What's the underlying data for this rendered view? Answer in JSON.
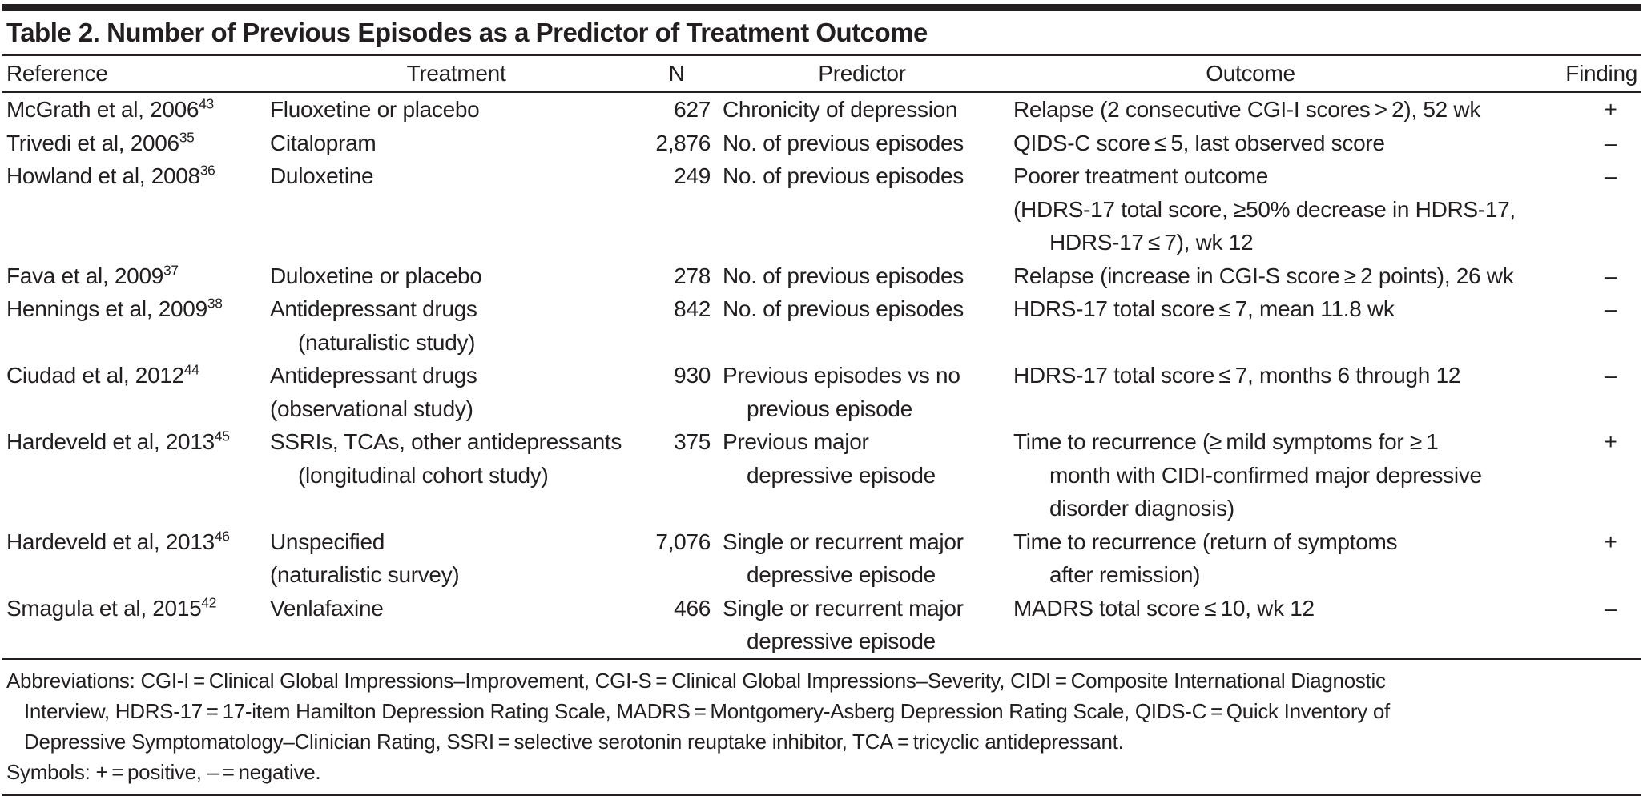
{
  "title": "Table 2. Number of Previous Episodes as a Predictor of Treatment Outcome",
  "colors": {
    "text": "#231f20",
    "rule": "#231f20",
    "background": "#ffffff"
  },
  "table": {
    "columns": [
      "Reference",
      "Treatment",
      "N",
      "Predictor",
      "Outcome",
      "Finding"
    ],
    "rows": [
      {
        "reference": {
          "text": "McGrath et al, 2006",
          "sup": "43"
        },
        "treatment": [
          {
            "text": "Fluoxetine or placebo",
            "indent": false
          }
        ],
        "n": "627",
        "predictor": [
          {
            "text": "Chronicity of depression",
            "indent": false
          }
        ],
        "outcome": [
          {
            "text": "Relapse (2 consecutive CGI-I scores > 2), 52 wk",
            "indent": false
          }
        ],
        "finding": "+"
      },
      {
        "reference": {
          "text": "Trivedi et al, 2006",
          "sup": "35"
        },
        "treatment": [
          {
            "text": "Citalopram",
            "indent": false
          }
        ],
        "n": "2,876",
        "predictor": [
          {
            "text": "No. of previous episodes",
            "indent": false
          }
        ],
        "outcome": [
          {
            "text": "QIDS-C score ≤ 5, last observed score",
            "indent": false
          }
        ],
        "finding": "–"
      },
      {
        "reference": {
          "text": "Howland et al, 2008",
          "sup": "36"
        },
        "treatment": [
          {
            "text": "Duloxetine",
            "indent": false
          }
        ],
        "n": "249",
        "predictor": [
          {
            "text": "No. of previous episodes",
            "indent": false
          }
        ],
        "outcome": [
          {
            "text": "Poorer treatment outcome",
            "indent": false
          },
          {
            "text": "(HDRS-17 total score, ≥50% decrease in HDRS-17,",
            "indent": false
          },
          {
            "text": "HDRS-17 ≤ 7), wk 12",
            "indent": true
          }
        ],
        "finding": "–"
      },
      {
        "reference": {
          "text": "Fava et al, 2009",
          "sup": "37"
        },
        "treatment": [
          {
            "text": "Duloxetine or placebo",
            "indent": false
          }
        ],
        "n": "278",
        "predictor": [
          {
            "text": "No. of previous episodes",
            "indent": false
          }
        ],
        "outcome": [
          {
            "text": "Relapse (increase in CGI-S score ≥ 2 points), 26 wk",
            "indent": false
          }
        ],
        "finding": "–"
      },
      {
        "reference": {
          "text": "Hennings et al, 2009",
          "sup": "38"
        },
        "treatment": [
          {
            "text": "Antidepressant drugs",
            "indent": false
          },
          {
            "text": "(naturalistic study)",
            "indent": true
          }
        ],
        "n": "842",
        "predictor": [
          {
            "text": "No. of previous episodes",
            "indent": false
          }
        ],
        "outcome": [
          {
            "text": "HDRS-17 total score ≤ 7, mean 11.8 wk",
            "indent": false
          }
        ],
        "finding": "–"
      },
      {
        "reference": {
          "text": "Ciudad et al, 2012",
          "sup": "44"
        },
        "treatment": [
          {
            "text": "Antidepressant drugs",
            "indent": false
          },
          {
            "text": "(observational study)",
            "indent": false
          }
        ],
        "n": "930",
        "predictor": [
          {
            "text": "Previous episodes vs no",
            "indent": false
          },
          {
            "text": "previous episode",
            "indent": true
          }
        ],
        "outcome": [
          {
            "text": "HDRS-17 total score ≤ 7, months 6 through 12",
            "indent": false
          }
        ],
        "finding": "–"
      },
      {
        "reference": {
          "text": "Hardeveld et al, 2013",
          "sup": "45"
        },
        "treatment": [
          {
            "text": "SSRIs, TCAs, other antidepressants",
            "indent": false
          },
          {
            "text": "(longitudinal cohort study)",
            "indent": true
          }
        ],
        "n": "375",
        "predictor": [
          {
            "text": "Previous major",
            "indent": false
          },
          {
            "text": "depressive episode",
            "indent": true
          }
        ],
        "outcome": [
          {
            "text": "Time to recurrence (≥ mild symptoms for ≥ 1",
            "indent": false
          },
          {
            "text": "month with CIDI-confirmed major depressive",
            "indent": true
          },
          {
            "text": "disorder diagnosis)",
            "indent": true
          }
        ],
        "finding": "+"
      },
      {
        "reference": {
          "text": "Hardeveld et al, 2013",
          "sup": "46"
        },
        "treatment": [
          {
            "text": "Unspecified",
            "indent": false
          },
          {
            "text": "(naturalistic survey)",
            "indent": false
          }
        ],
        "n": "7,076",
        "predictor": [
          {
            "text": "Single or recurrent major",
            "indent": false
          },
          {
            "text": "depressive episode",
            "indent": true
          }
        ],
        "outcome": [
          {
            "text": "Time to recurrence (return of symptoms",
            "indent": false
          },
          {
            "text": "after remission)",
            "indent": true
          }
        ],
        "finding": "+"
      },
      {
        "reference": {
          "text": "Smagula et al, 2015",
          "sup": "42"
        },
        "treatment": [
          {
            "text": "Venlafaxine",
            "indent": false
          }
        ],
        "n": "466",
        "predictor": [
          {
            "text": "Single or recurrent major",
            "indent": false
          },
          {
            "text": "depressive episode",
            "indent": true
          }
        ],
        "outcome": [
          {
            "text": "MADRS total score ≤ 10, wk 12",
            "indent": false
          }
        ],
        "finding": "–"
      }
    ]
  },
  "footnotes": {
    "lines": [
      {
        "text": "Abbreviations: CGI-I = Clinical Global Impressions–Improvement, CGI-S = Clinical Global Impressions–Severity, CIDI = Composite International Diagnostic",
        "indent": false
      },
      {
        "text": "Interview, HDRS-17 = 17-item Hamilton Depression Rating Scale, MADRS = Montgomery-Asberg Depression Rating Scale, QIDS-C = Quick Inventory of",
        "indent": true
      },
      {
        "text": "Depressive Symptomatology–Clinician Rating, SSRI = selective serotonin reuptake inhibitor, TCA = tricyclic antidepressant.",
        "indent": true
      },
      {
        "text": "Symbols: + = positive, – = negative.",
        "indent": false
      }
    ]
  }
}
